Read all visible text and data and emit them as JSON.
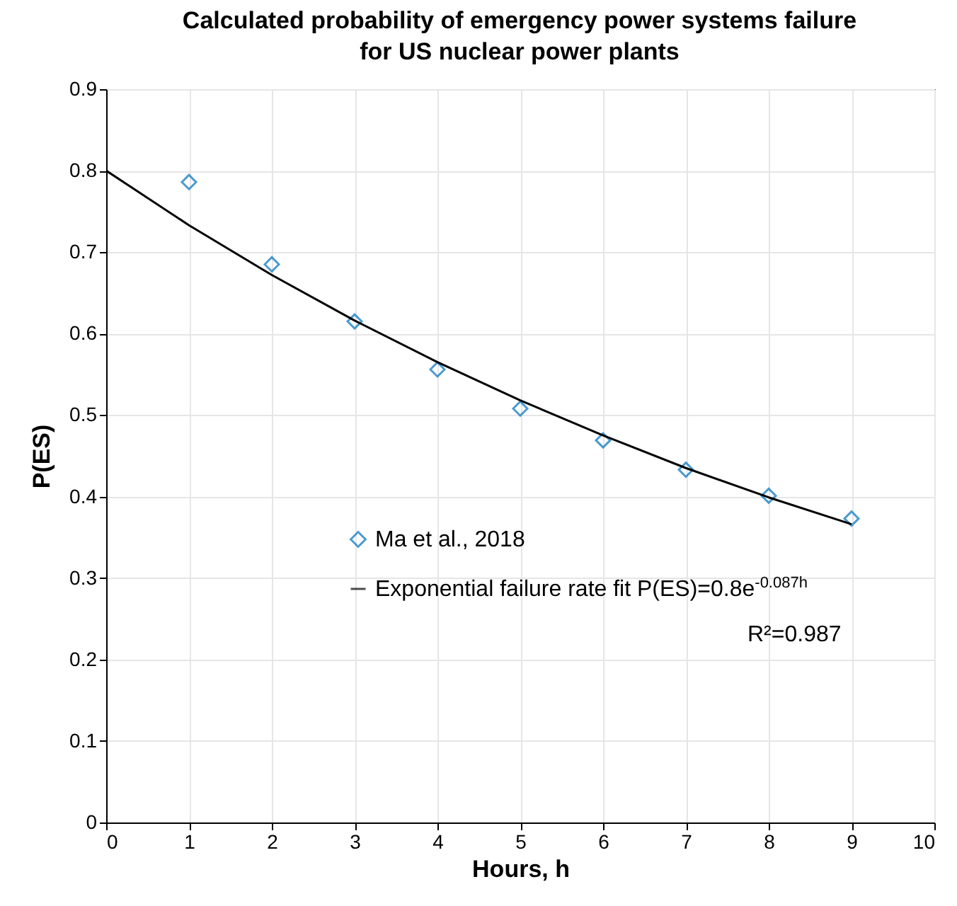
{
  "chart_data": {
    "type": "scatter",
    "title": "Calculated probability of emergency power systems failure for US nuclear power plants",
    "xlabel": "Hours, h",
    "ylabel": "P(ES)",
    "xlim": [
      0,
      10
    ],
    "xticks": [
      0,
      1,
      2,
      3,
      4,
      5,
      6,
      7,
      8,
      9,
      10
    ],
    "ylim": [
      0,
      0.9
    ],
    "yticks": [
      0,
      0.1,
      0.2,
      0.3,
      0.4,
      0.5,
      0.6,
      0.7,
      0.8,
      0.9
    ],
    "grid": true,
    "legend": "right",
    "annotations": [
      "R²=0.987"
    ],
    "series": [
      {
        "name": "Ma et al., 2018",
        "marker": "diamond",
        "color": "#0072bd",
        "x": [
          1,
          2,
          3,
          4,
          5,
          6,
          7,
          8,
          9
        ],
        "values": [
          0.786,
          0.685,
          0.615,
          0.556,
          0.508,
          0.469,
          0.433,
          0.401,
          0.373
        ]
      },
      {
        "name": "Exponential failure rate fit P(ES)=0.8e$^{-0.087h}$",
        "type": "line",
        "color": "#000000",
        "x": [
          0,
          1,
          2,
          3,
          4,
          5,
          6,
          7,
          8,
          9
        ],
        "values": [
          0.8,
          0.733,
          0.672,
          0.616,
          0.565,
          0.518,
          0.475,
          0.435,
          0.399,
          0.366
        ]
      }
    ]
  }
}
